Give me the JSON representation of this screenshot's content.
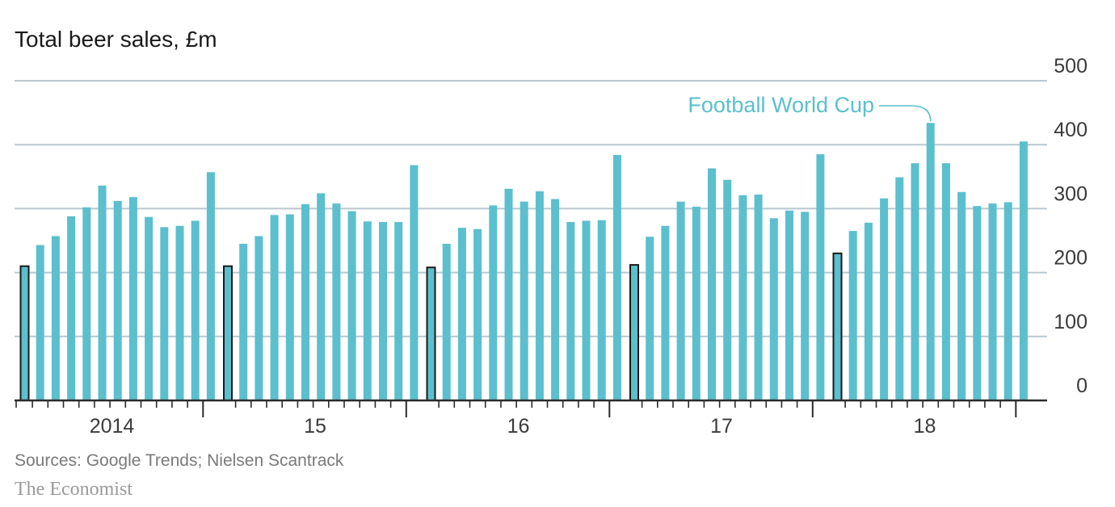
{
  "chart_data": {
    "type": "bar",
    "title": "Total beer sales, £m",
    "ylim": [
      0,
      500
    ],
    "yticks": [
      0,
      100,
      200,
      300,
      400,
      500
    ],
    "ytick_labels": [
      "0",
      "100",
      "200",
      "300",
      "400",
      "500"
    ],
    "year_labels": [
      "2014",
      "15",
      "16",
      "17",
      "18"
    ],
    "grid": true,
    "bar_color": "#5bbfce",
    "highlight_outline_color": "#1a1a1a",
    "highlighted_month": "January",
    "series": [
      {
        "year": "2014",
        "values": [
          210,
          243,
          257,
          288,
          302,
          336,
          312,
          318,
          287,
          271,
          273,
          281,
          357
        ]
      },
      {
        "year": "15",
        "values": [
          210,
          245,
          257,
          290,
          291,
          307,
          324,
          308,
          296,
          280,
          279,
          279,
          368
        ]
      },
      {
        "year": "16",
        "values": [
          208,
          245,
          270,
          268,
          305,
          331,
          311,
          327,
          315,
          279,
          281,
          282,
          384
        ]
      },
      {
        "year": "17",
        "values": [
          212,
          256,
          273,
          311,
          303,
          363,
          345,
          321,
          322,
          285,
          297,
          295,
          385
        ]
      },
      {
        "year": "18",
        "values": [
          230,
          265,
          278,
          316,
          349,
          371,
          434,
          371,
          326,
          304,
          308,
          310,
          405
        ]
      }
    ],
    "annotation": {
      "text": "Football World Cup",
      "year_index": 4,
      "month_index": 6,
      "color": "#5bbfce"
    }
  },
  "footer": {
    "source": "Sources: Google Trends; Nielsen Scantrack",
    "brand": "The Economist"
  }
}
